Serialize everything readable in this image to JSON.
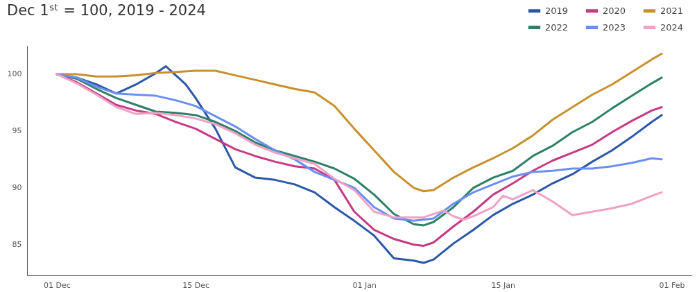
{
  "chart_data": {
    "type": "line",
    "title": "Dec 1ˢᵗ = 100, 2019 - 2024",
    "xlim": [
      "2023-11-28",
      "2024-02-03"
    ],
    "xticks": [
      {
        "value": "2023-12-01",
        "label": "01 Dec"
      },
      {
        "value": "2023-12-15",
        "label": "15 Dec"
      },
      {
        "value": "2024-01-01",
        "label": "01 Jan"
      },
      {
        "value": "2024-01-15",
        "label": "15 Jan"
      },
      {
        "value": "2024-02-01",
        "label": "01 Feb"
      }
    ],
    "ylim": [
      82.3,
      102.5
    ],
    "yticks": [
      85,
      90,
      95,
      100
    ],
    "grid": false,
    "legend": "top right",
    "marker": "none",
    "line_style": "solid",
    "series": [
      {
        "name": "2019",
        "color": "#2b57a8",
        "x": [
          "2023-12-01",
          "2023-12-03",
          "2023-12-05",
          "2023-12-07",
          "2023-12-09",
          "2023-12-11",
          "2023-12-12",
          "2023-12-13",
          "2023-12-14",
          "2023-12-15",
          "2023-12-17",
          "2023-12-19",
          "2023-12-21",
          "2023-12-23",
          "2023-12-25",
          "2023-12-27",
          "2023-12-29",
          "2023-12-31",
          "2024-01-02",
          "2024-01-04",
          "2024-01-06",
          "2024-01-07",
          "2024-01-08",
          "2024-01-10",
          "2024-01-12",
          "2024-01-14",
          "2024-01-16",
          "2024-01-18",
          "2024-01-20",
          "2024-01-22",
          "2024-01-24",
          "2024-01-26",
          "2024-01-28",
          "2024-01-30",
          "2024-01-31"
        ],
        "values": [
          100,
          99.7,
          99.1,
          98.3,
          99.1,
          100.1,
          100.7,
          99.9,
          99.1,
          97.9,
          95.2,
          91.8,
          90.9,
          90.7,
          90.3,
          89.6,
          88.3,
          87.1,
          85.8,
          83.8,
          83.6,
          83.4,
          83.7,
          85.1,
          86.3,
          87.6,
          88.6,
          89.4,
          90.4,
          91.2,
          92.3,
          93.3,
          94.5,
          95.8,
          96.4
        ]
      },
      {
        "name": "2020",
        "color": "#c63a85",
        "x": [
          "2023-12-01",
          "2023-12-03",
          "2023-12-05",
          "2023-12-07",
          "2023-12-09",
          "2023-12-11",
          "2023-12-13",
          "2023-12-15",
          "2023-12-17",
          "2023-12-19",
          "2023-12-21",
          "2023-12-23",
          "2023-12-25",
          "2023-12-27",
          "2023-12-29",
          "2023-12-31",
          "2024-01-02",
          "2024-01-04",
          "2024-01-06",
          "2024-01-07",
          "2024-01-08",
          "2024-01-10",
          "2024-01-12",
          "2024-01-14",
          "2024-01-16",
          "2024-01-18",
          "2024-01-20",
          "2024-01-22",
          "2024-01-24",
          "2024-01-26",
          "2024-01-28",
          "2024-01-30",
          "2024-01-31"
        ],
        "values": [
          100,
          99.3,
          98.3,
          97.3,
          96.8,
          96.5,
          95.8,
          95.2,
          94.3,
          93.4,
          92.8,
          92.3,
          91.9,
          91.7,
          90.7,
          87.9,
          86.3,
          85.5,
          85.0,
          84.9,
          85.2,
          86.6,
          87.9,
          89.4,
          90.4,
          91.5,
          92.4,
          93.1,
          93.8,
          94.9,
          95.9,
          96.8,
          97.1
        ]
      },
      {
        "name": "2021",
        "color": "#c8902e",
        "x": [
          "2023-12-01",
          "2023-12-03",
          "2023-12-05",
          "2023-12-07",
          "2023-12-09",
          "2023-12-11",
          "2023-12-13",
          "2023-12-15",
          "2023-12-17",
          "2023-12-19",
          "2023-12-21",
          "2023-12-23",
          "2023-12-25",
          "2023-12-27",
          "2023-12-29",
          "2023-12-31",
          "2024-01-02",
          "2024-01-04",
          "2024-01-06",
          "2024-01-07",
          "2024-01-08",
          "2024-01-10",
          "2024-01-12",
          "2024-01-14",
          "2024-01-16",
          "2024-01-18",
          "2024-01-20",
          "2024-01-22",
          "2024-01-24",
          "2024-01-26",
          "2024-01-28",
          "2024-01-30",
          "2024-01-31"
        ],
        "values": [
          100,
          100,
          99.8,
          99.8,
          99.9,
          100.1,
          100.2,
          100.3,
          100.3,
          99.9,
          99.5,
          99.1,
          98.7,
          98.4,
          97.2,
          95.2,
          93.3,
          91.4,
          90.0,
          89.7,
          89.8,
          90.9,
          91.8,
          92.6,
          93.5,
          94.6,
          96.0,
          97.1,
          98.2,
          99.1,
          100.2,
          101.3,
          101.8
        ]
      },
      {
        "name": "2022",
        "color": "#2e8068",
        "x": [
          "2023-12-01",
          "2023-12-03",
          "2023-12-05",
          "2023-12-07",
          "2023-12-09",
          "2023-12-11",
          "2023-12-13",
          "2023-12-15",
          "2023-12-17",
          "2023-12-19",
          "2023-12-21",
          "2023-12-23",
          "2023-12-25",
          "2023-12-27",
          "2023-12-29",
          "2023-12-31",
          "2024-01-02",
          "2024-01-04",
          "2024-01-06",
          "2024-01-07",
          "2024-01-08",
          "2024-01-10",
          "2024-01-12",
          "2024-01-14",
          "2024-01-16",
          "2024-01-18",
          "2024-01-20",
          "2024-01-22",
          "2024-01-24",
          "2024-01-26",
          "2024-01-28",
          "2024-01-30",
          "2024-01-31"
        ],
        "values": [
          100,
          99.6,
          98.7,
          97.9,
          97.3,
          96.7,
          96.6,
          96.4,
          95.8,
          95.0,
          94.0,
          93.3,
          92.8,
          92.3,
          91.7,
          90.8,
          89.4,
          87.7,
          86.8,
          86.7,
          87.0,
          88.3,
          90.0,
          90.9,
          91.5,
          92.8,
          93.7,
          94.9,
          95.8,
          97.0,
          98.1,
          99.2,
          99.7
        ]
      },
      {
        "name": "2023",
        "color": "#6a8ff0",
        "x": [
          "2023-12-01",
          "2023-12-03",
          "2023-12-05",
          "2023-12-07",
          "2023-12-09",
          "2023-12-11",
          "2023-12-13",
          "2023-12-15",
          "2023-12-17",
          "2023-12-19",
          "2023-12-21",
          "2023-12-23",
          "2023-12-25",
          "2023-12-27",
          "2023-12-29",
          "2023-12-31",
          "2024-01-02",
          "2024-01-04",
          "2024-01-06",
          "2024-01-08",
          "2024-01-10",
          "2024-01-12",
          "2024-01-14",
          "2024-01-16",
          "2024-01-18",
          "2024-01-20",
          "2024-01-22",
          "2024-01-24",
          "2024-01-26",
          "2024-01-28",
          "2024-01-30",
          "2024-01-31"
        ],
        "values": [
          100,
          99.7,
          98.9,
          98.3,
          98.2,
          98.1,
          97.7,
          97.2,
          96.3,
          95.4,
          94.3,
          93.3,
          92.5,
          91.4,
          90.7,
          90.0,
          88.3,
          87.3,
          87.1,
          87.3,
          88.6,
          89.6,
          90.3,
          91.0,
          91.4,
          91.5,
          91.7,
          91.7,
          91.9,
          92.2,
          92.6,
          92.5
        ]
      },
      {
        "name": "2024",
        "color": "#eea2c4",
        "x": [
          "2023-12-01",
          "2023-12-03",
          "2023-12-05",
          "2023-12-07",
          "2023-12-09",
          "2023-12-11",
          "2023-12-13",
          "2023-12-15",
          "2023-12-17",
          "2023-12-19",
          "2023-12-21",
          "2023-12-23",
          "2023-12-25",
          "2023-12-27",
          "2023-12-29",
          "2023-12-31",
          "2024-01-02",
          "2024-01-04",
          "2024-01-06",
          "2024-01-07",
          "2024-01-09",
          "2024-01-10",
          "2024-01-11",
          "2024-01-12",
          "2024-01-14",
          "2024-01-15",
          "2024-01-16",
          "2024-01-18",
          "2024-01-20",
          "2024-01-22",
          "2024-01-24",
          "2024-01-26",
          "2024-01-28",
          "2024-01-30",
          "2024-01-31"
        ],
        "values": [
          100,
          99.2,
          98.2,
          97.1,
          96.5,
          96.6,
          96.4,
          96.1,
          95.6,
          94.8,
          93.8,
          93.1,
          92.6,
          92.1,
          90.8,
          89.8,
          87.9,
          87.4,
          87.4,
          87.4,
          88.0,
          87.5,
          87.2,
          87.5,
          88.3,
          89.3,
          89.0,
          89.8,
          88.8,
          87.6,
          87.9,
          88.2,
          88.6,
          89.3,
          89.6
        ]
      }
    ]
  }
}
